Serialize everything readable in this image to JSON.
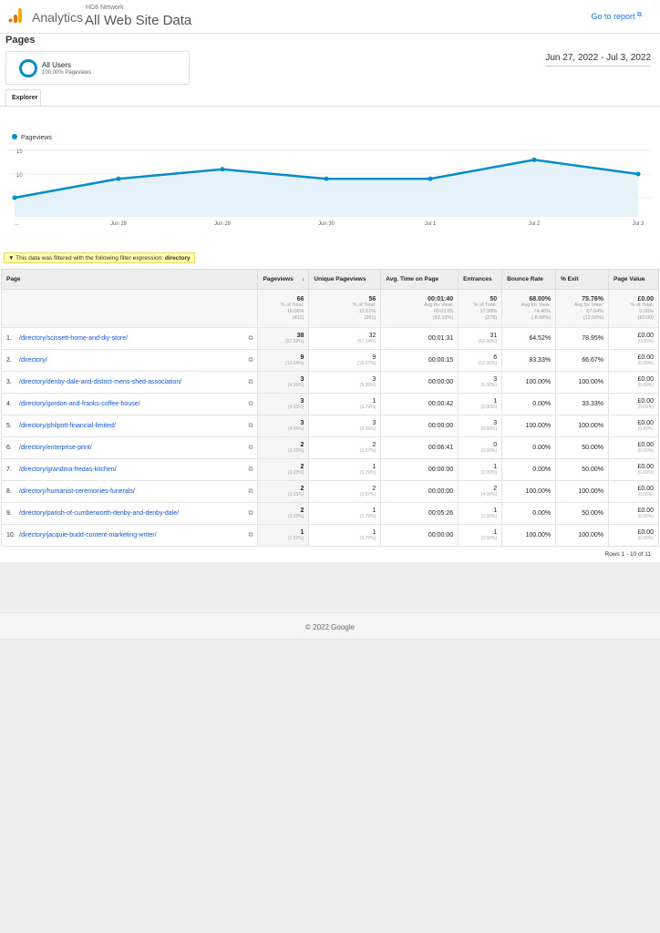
{
  "header": {
    "app": "Analytics",
    "account": "HD8 Network",
    "property": "All Web Site Data",
    "goto": "Go to report"
  },
  "title": "Pages",
  "segment": {
    "name": "All Users",
    "sub": "100.00% Pageviews"
  },
  "date_range": "Jun 27, 2022 - Jul 3, 2022",
  "tab": "Explorer",
  "chart_data": {
    "type": "area",
    "legend": "Pageviews",
    "x": [
      "...",
      "Jun 28",
      "Jun 29",
      "Jun 30",
      "Jul 1",
      "Jul 2",
      "Jul 3"
    ],
    "values": [
      5,
      9,
      11,
      9,
      9,
      13,
      10
    ],
    "yticks": [
      5,
      10,
      15
    ],
    "ylim": [
      0,
      15
    ],
    "color": "#058dc7"
  },
  "filter": {
    "text": "This data was filtered with the following filter expression:",
    "expr": "directory"
  },
  "table": {
    "headers": [
      "Page",
      "Pageviews",
      "Unique Pageviews",
      "Avg. Time on Page",
      "Entrances",
      "Bounce Rate",
      "% Exit",
      "Page Value"
    ],
    "totals": [
      {
        "v": "66",
        "l1": "% of Total:",
        "l2": "16.06%",
        "l3": "(411)"
      },
      {
        "v": "56",
        "l1": "% of Total:",
        "l2": "15.51%",
        "l3": "(361)"
      },
      {
        "v": "00:01:40",
        "l1": "Avg for View:",
        "l2": "00:01:05",
        "l3": "(53.10%)"
      },
      {
        "v": "50",
        "l1": "% of Total:",
        "l2": "17.99%",
        "l3": "(278)"
      },
      {
        "v": "68.00%",
        "l1": "Avg for View:",
        "l2": "74.46%",
        "l3": "(-8.68%)"
      },
      {
        "v": "75.76%",
        "l1": "Avg for View:",
        "l2": "67.64%",
        "l3": "(12.00%)"
      },
      {
        "v": "£0.00",
        "l1": "% of Total:",
        "l2": "0.00%",
        "l3": "(£0.00)"
      }
    ],
    "rows": [
      {
        "i": "1.",
        "page": "/directory/scissett-home-and-diy-store/",
        "pv": "38",
        "pvp": "(57.58%)",
        "up": "32",
        "upp": "(57.14%)",
        "t": "00:01:31",
        "e": "31",
        "ep": "(62.00%)",
        "b": "64.52%",
        "x": "78.95%",
        "val": "£0.00",
        "valp": "(0.00%)"
      },
      {
        "i": "2.",
        "page": "/directory/",
        "pv": "9",
        "pvp": "(13.64%)",
        "up": "9",
        "upp": "(16.07%)",
        "t": "00:00:15",
        "e": "6",
        "ep": "(12.00%)",
        "b": "83.33%",
        "x": "66.67%",
        "val": "£0.00",
        "valp": "(0.00%)"
      },
      {
        "i": "3.",
        "page": "/directory/denby-dale-and-district-mens-shed-association/",
        "pv": "3",
        "pvp": "(4.55%)",
        "up": "3",
        "upp": "(5.36%)",
        "t": "00:00:00",
        "e": "3",
        "ep": "(6.00%)",
        "b": "100.00%",
        "x": "100.00%",
        "val": "£0.00",
        "valp": "(0.00%)"
      },
      {
        "i": "4.",
        "page": "/directory/gordon-and-franks-coffee-house/",
        "pv": "3",
        "pvp": "(4.55%)",
        "up": "1",
        "upp": "(1.79%)",
        "t": "00:00:42",
        "e": "1",
        "ep": "(2.00%)",
        "b": "0.00%",
        "x": "33.33%",
        "val": "£0.00",
        "valp": "(0.00%)"
      },
      {
        "i": "5.",
        "page": "/directory/philpott-financial-limited/",
        "pv": "3",
        "pvp": "(4.55%)",
        "up": "3",
        "upp": "(5.36%)",
        "t": "00:00:00",
        "e": "3",
        "ep": "(6.00%)",
        "b": "100.00%",
        "x": "100.00%",
        "val": "£0.00",
        "valp": "(0.00%)"
      },
      {
        "i": "6.",
        "page": "/directory/enterprise-print/",
        "pv": "2",
        "pvp": "(3.03%)",
        "up": "2",
        "upp": "(3.57%)",
        "t": "00:06:41",
        "e": "0",
        "ep": "(0.00%)",
        "b": "0.00%",
        "x": "50.00%",
        "val": "£0.00",
        "valp": "(0.00%)"
      },
      {
        "i": "7.",
        "page": "/directory/grandma-fredas-kitchen/",
        "pv": "2",
        "pvp": "(3.03%)",
        "up": "1",
        "upp": "(1.79%)",
        "t": "00:00:00",
        "e": "1",
        "ep": "(2.00%)",
        "b": "0.00%",
        "x": "50.00%",
        "val": "£0.00",
        "valp": "(0.00%)"
      },
      {
        "i": "8.",
        "page": "/directory/humanist-ceremonies-funerals/",
        "pv": "2",
        "pvp": "(3.03%)",
        "up": "2",
        "upp": "(3.57%)",
        "t": "00:00:00",
        "e": "2",
        "ep": "(4.00%)",
        "b": "100.00%",
        "x": "100.00%",
        "val": "£0.00",
        "valp": "(0.00%)"
      },
      {
        "i": "9.",
        "page": "/directory/parish-of-cumberworth-denby-and-denby-dale/",
        "pv": "2",
        "pvp": "(3.03%)",
        "up": "1",
        "upp": "(1.79%)",
        "t": "00:05:26",
        "e": "1",
        "ep": "(2.00%)",
        "b": "0.00%",
        "x": "50.00%",
        "val": "£0.00",
        "valp": "(0.00%)"
      },
      {
        "i": "10.",
        "page": "/directory/jacquie-budd-content-marketing-writer/",
        "pv": "1",
        "pvp": "(1.52%)",
        "up": "1",
        "upp": "(1.79%)",
        "t": "00:00:00",
        "e": "1",
        "ep": "(2.00%)",
        "b": "100.00%",
        "x": "100.00%",
        "val": "£0.00",
        "valp": "(0.00%)"
      }
    ],
    "rows_label": "Rows 1 - 10 of 11"
  },
  "footer": "© 2022 Google"
}
